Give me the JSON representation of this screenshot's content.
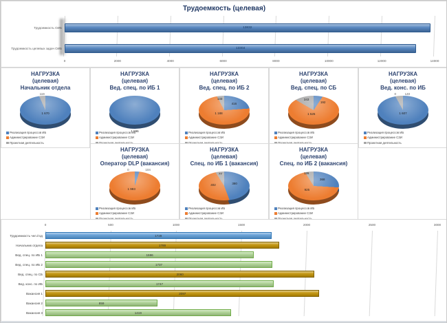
{
  "pie_legend": {
    "items": [
      {
        "label": "Реализация процессов ИБ",
        "color": "#4F81BD"
      },
      {
        "label": "Администрирование СЗИ",
        "color": "#ED7D31"
      },
      {
        "label": "Проектная деятельность",
        "color": "#A6A6A6"
      }
    ]
  },
  "chart_data": [
    {
      "type": "bar",
      "orientation": "horizontal",
      "title": "Трудоемкость (целевая)",
      "categories": [
        "Трудоемкость ОИБ",
        "Трудоемкость целевых задач ОИБ"
      ],
      "values": [
        13832,
        13304
      ],
      "xlim": [
        0,
        14000
      ],
      "xticks": [
        0,
        2000,
        4000,
        6000,
        8000,
        10000,
        12000,
        14000
      ],
      "bar_color": "#4F81BD",
      "bar_border": "#2C598F",
      "grid": true,
      "legend_position": "none"
    },
    {
      "type": "pie",
      "title": [
        "НАГРУЗКА",
        "(целевая)",
        "Начальник отдела"
      ],
      "total": 1789,
      "slices": [
        {
          "name": "Реализация процессов ИБ",
          "value": 1670,
          "label": "1 670",
          "color": "#4F81BD"
        },
        {
          "name": "Администрирование СЗИ",
          "value": 0,
          "label": "",
          "color": "#ED7D31"
        },
        {
          "name": "Проектная деятельность",
          "value": 119,
          "label": "119",
          "color": "#A6A6A6"
        }
      ]
    },
    {
      "type": "pie",
      "title": [
        "НАГРУЗКА",
        "(целевая)",
        "Вед. спец. по ИБ 1"
      ],
      "total": 1596,
      "slices": [
        {
          "name": "Реализация процессов ИБ",
          "value": 1596,
          "label": "1 596",
          "color": "#4F81BD"
        },
        {
          "name": "Администрирование СЗИ",
          "value": 0,
          "label": "",
          "color": "#ED7D31"
        },
        {
          "name": "Проектная деятельность",
          "value": 0,
          "label": "",
          "color": "#A6A6A6"
        }
      ]
    },
    {
      "type": "pie",
      "title": [
        "НАГРУЗКА",
        "(целевая)",
        "Вед. спец. по ИБ 2"
      ],
      "total": 1737,
      "slices": [
        {
          "name": "Реализация процессов ИБ",
          "value": 416,
          "label": "416",
          "color": "#4F81BD"
        },
        {
          "name": "Администрирование СЗИ",
          "value": 1188,
          "label": "1 188",
          "color": "#ED7D31"
        },
        {
          "name": "Проектная деятельность",
          "value": 133,
          "label": "133",
          "color": "#A6A6A6"
        }
      ]
    },
    {
      "type": "pie",
      "title": [
        "НАГРУЗКА",
        "(целевая)",
        "Вед. спец. по СБ"
      ],
      "total": 2060,
      "slices": [
        {
          "name": "Реализация процессов ИБ",
          "value": 192,
          "label": "192",
          "color": "#4F81BD"
        },
        {
          "name": "Администрирование СЗИ",
          "value": 1525,
          "label": "1 525",
          "color": "#ED7D31"
        },
        {
          "name": "Проектная деятельность",
          "value": 343,
          "label": "343",
          "color": "#A6A6A6"
        }
      ]
    },
    {
      "type": "pie",
      "title": [
        "НАГРУЗКА",
        "(целевая)",
        "Вед. конс. по ИБ"
      ],
      "total": 1747,
      "slices": [
        {
          "name": "Реализация процессов ИБ",
          "value": 1607,
          "label": "1 607",
          "color": "#4F81BD"
        },
        {
          "name": "Администрирование СЗИ",
          "value": 0,
          "label": "0",
          "color": "#ED7D31"
        },
        {
          "name": "Проектная деятельность",
          "value": 140,
          "label": "140",
          "color": "#A6A6A6"
        }
      ]
    },
    {
      "type": "pie",
      "title": [
        "НАГРУЗКА",
        "(целевая)",
        "Оператор DLP (вакансия)"
      ],
      "total": 2097,
      "slices": [
        {
          "name": "Реализация процессов ИБ",
          "value": 104,
          "label": "104",
          "color": "#4F81BD"
        },
        {
          "name": "Администрирование СЗИ",
          "value": 1993,
          "label": "1 993",
          "color": "#ED7D31"
        },
        {
          "name": "Проектная деятельность",
          "value": 0,
          "label": "0",
          "color": "#A6A6A6"
        }
      ]
    },
    {
      "type": "pie",
      "title": [
        "НАГРУЗКА",
        "(целевая)",
        "Спец. по ИБ 1 (вакансия)"
      ],
      "total": 859,
      "slices": [
        {
          "name": "Реализация процессов ИБ",
          "value": 380,
          "label": "380",
          "color": "#4F81BD"
        },
        {
          "name": "Администрирование СЗИ",
          "value": 402,
          "label": "402",
          "color": "#ED7D31"
        },
        {
          "name": "Проектная деятельность",
          "value": 77,
          "label": "77",
          "color": "#A6A6A6"
        }
      ]
    },
    {
      "type": "pie",
      "title": [
        "НАГРУЗКА",
        "(целевая)",
        "Спец. по ИБ 2 (вакансия)"
      ],
      "total": 1419,
      "slices": [
        {
          "name": "Реализация процессов ИБ",
          "value": 368,
          "label": "368",
          "color": "#4F81BD"
        },
        {
          "name": "Администрирование СЗИ",
          "value": 925,
          "label": "925",
          "color": "#ED7D31"
        },
        {
          "name": "Проектная деятельность",
          "value": 126,
          "label": "126",
          "color": "#A6A6A6"
        }
      ]
    },
    {
      "type": "bar",
      "orientation": "horizontal",
      "title": "",
      "categories": [
        "Трудоемкость чел./год",
        "Начальник отдела",
        "Вед. спец. по ИБ 1",
        "Вед. спец. по ИБ 2",
        "Вед. спец. по СБ",
        "Вед. конс. по ИБ",
        "Вакансия 1",
        "Вакансия 2",
        "Вакансия 3"
      ],
      "values": [
        1729,
        1789,
        1596,
        1737,
        2060,
        1747,
        2097,
        859,
        1419
      ],
      "xlim": [
        0,
        3000
      ],
      "xticks": [
        0,
        500,
        1000,
        1500,
        2000,
        2500,
        3000
      ],
      "bar_colors": [
        "#5B9BD5",
        "#BF8F00",
        "#A9D08E",
        "#A9D08E",
        "#BF8F00",
        "#A9D08E",
        "#BF8F00",
        "#A9D08E",
        "#A9D08E"
      ],
      "bar_borders": [
        "#2E75B6",
        "#7F6000",
        "#6FAC46",
        "#6FAC46",
        "#7F6000",
        "#6FAC46",
        "#7F6000",
        "#6FAC46",
        "#6FAC46"
      ],
      "grid": true
    }
  ]
}
